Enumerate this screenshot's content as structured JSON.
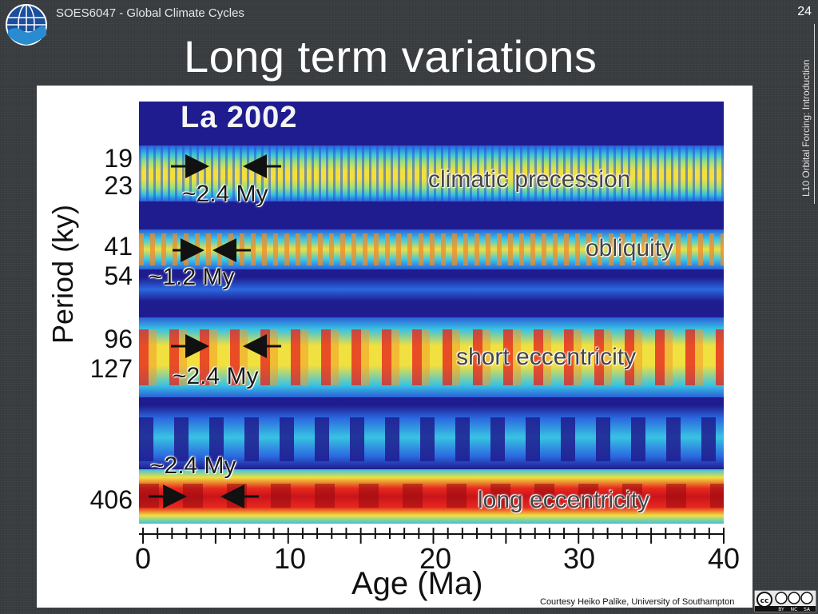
{
  "header": {
    "course": "SOES6047 - Global Climate Cycles",
    "page_number": "24",
    "side_label": "L10 Orbital Forcing: Introduction",
    "title": "Long term variations"
  },
  "figure": {
    "spec_title": "La 2002",
    "y_ticks": [
      "19",
      "23",
      "41",
      "54",
      "96",
      "127",
      "406"
    ],
    "y_label": "Period (ky)",
    "x_ticks": [
      "0",
      "10",
      "20",
      "30",
      "40"
    ],
    "x_label": "Age (Ma)",
    "annotations": {
      "precession_period": "~2.4 My",
      "obliquity_period": "~1.2 My",
      "short_ecc_period": "~2.4 My",
      "long_ecc_period": "~2.4 My",
      "precession": "climatic precession",
      "obliquity": "obliquity",
      "short_ecc": "short eccentricity",
      "long_ecc": "long eccentricity"
    },
    "credit": "Courtesy Heiko Palike, University of Southampton"
  },
  "license": {
    "badge": "cc",
    "terms": [
      "BY",
      "NC",
      "SA"
    ]
  }
}
